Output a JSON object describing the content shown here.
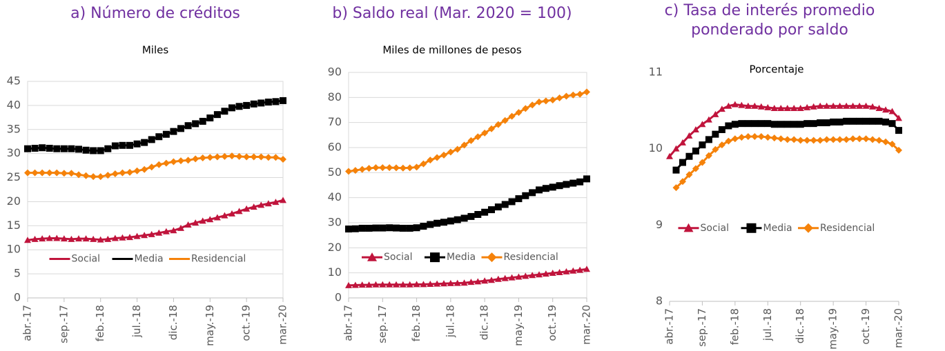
{
  "chart_data": [
    {
      "type": "line",
      "title": "a) Número de créditos",
      "subtitle": "Miles",
      "categories": [
        "abr.-17",
        null,
        null,
        null,
        null,
        "sep.-17",
        null,
        null,
        null,
        null,
        "feb.-18",
        null,
        null,
        null,
        null,
        "jul.-18",
        null,
        null,
        null,
        null,
        "dic.-18",
        null,
        null,
        null,
        null,
        "may.-19",
        null,
        null,
        null,
        null,
        "oct.-19",
        null,
        null,
        null,
        null,
        "mar.-20"
      ],
      "series": [
        {
          "name": "Social",
          "color": "#c0143c",
          "marker": "triangle",
          "values": [
            12.0,
            12.2,
            12.3,
            12.4,
            12.4,
            12.3,
            12.2,
            12.3,
            12.3,
            12.2,
            12.1,
            12.2,
            12.4,
            12.5,
            12.6,
            12.8,
            13.0,
            13.2,
            13.5,
            13.8,
            14.0,
            14.5,
            15.2,
            15.6,
            16.0,
            16.3,
            16.7,
            17.1,
            17.5,
            18.0,
            18.5,
            18.9,
            19.3,
            19.6,
            19.9,
            20.3
          ]
        },
        {
          "name": "Media",
          "color": "#000000",
          "marker": "square",
          "values": [
            31.0,
            31.1,
            31.2,
            31.1,
            31.0,
            31.0,
            31.0,
            30.9,
            30.7,
            30.6,
            30.6,
            31.0,
            31.6,
            31.7,
            31.7,
            32.0,
            32.3,
            32.9,
            33.5,
            34.0,
            34.6,
            35.2,
            35.8,
            36.2,
            36.7,
            37.4,
            38.1,
            38.8,
            39.5,
            39.8,
            40.0,
            40.3,
            40.5,
            40.7,
            40.8,
            41.0
          ]
        },
        {
          "name": "Residencial",
          "color": "#f5820a",
          "marker": "diamond",
          "values": [
            26.0,
            26.0,
            26.0,
            26.0,
            26.0,
            25.9,
            25.9,
            25.6,
            25.4,
            25.2,
            25.2,
            25.5,
            25.8,
            26.0,
            26.1,
            26.4,
            26.7,
            27.2,
            27.7,
            28.0,
            28.3,
            28.5,
            28.6,
            28.9,
            29.1,
            29.2,
            29.3,
            29.4,
            29.5,
            29.4,
            29.3,
            29.3,
            29.3,
            29.2,
            29.2,
            28.8
          ]
        }
      ],
      "ylim": [
        0,
        45
      ],
      "yticks": [
        0,
        5,
        10,
        15,
        20,
        25,
        30,
        35,
        40,
        45
      ],
      "grid": true,
      "legend": "lower center",
      "legend_markers": false
    },
    {
      "type": "line",
      "title": "b) Saldo real (Mar. 2020 = 100)",
      "subtitle": "Miles de millones de pesos",
      "categories": [
        "abr.-17",
        null,
        null,
        null,
        null,
        "sep.-17",
        null,
        null,
        null,
        null,
        "feb.-18",
        null,
        null,
        null,
        null,
        "jul.-18",
        null,
        null,
        null,
        null,
        "dic.-18",
        null,
        null,
        null,
        null,
        "may.-19",
        null,
        null,
        null,
        null,
        "oct.-19",
        null,
        null,
        null,
        null,
        "mar.-20"
      ],
      "series": [
        {
          "name": "Social",
          "color": "#c0143c",
          "marker": "triangle",
          "values": [
            5.0,
            5.1,
            5.2,
            5.2,
            5.3,
            5.3,
            5.3,
            5.3,
            5.3,
            5.3,
            5.4,
            5.4,
            5.5,
            5.6,
            5.7,
            5.8,
            5.9,
            6.0,
            6.3,
            6.5,
            6.8,
            7.1,
            7.5,
            7.8,
            8.1,
            8.4,
            8.7,
            9.0,
            9.3,
            9.6,
            9.9,
            10.2,
            10.5,
            10.8,
            11.1,
            11.5
          ]
        },
        {
          "name": "Media",
          "color": "#000000",
          "marker": "square",
          "values": [
            27.5,
            27.6,
            27.8,
            27.8,
            27.9,
            27.9,
            28.0,
            27.9,
            27.8,
            27.8,
            28.0,
            28.6,
            29.3,
            29.8,
            30.2,
            30.7,
            31.2,
            31.8,
            32.5,
            33.3,
            34.2,
            35.2,
            36.3,
            37.3,
            38.4,
            39.6,
            40.8,
            42.0,
            43.1,
            43.7,
            44.2,
            44.8,
            45.3,
            45.8,
            46.3,
            47.5
          ]
        },
        {
          "name": "Residencial",
          "color": "#f5820a",
          "marker": "diamond",
          "values": [
            50.5,
            50.9,
            51.3,
            51.7,
            52.0,
            52.0,
            52.0,
            51.9,
            51.8,
            51.9,
            52.2,
            53.5,
            55.0,
            56.0,
            57.0,
            58.2,
            59.3,
            61.0,
            62.8,
            64.3,
            65.8,
            67.5,
            69.2,
            70.8,
            72.5,
            74.0,
            75.6,
            77.0,
            78.2,
            78.6,
            79.0,
            79.8,
            80.5,
            81.0,
            81.3,
            82.2
          ]
        }
      ],
      "ylim": [
        0,
        90
      ],
      "yticks": [
        0,
        10,
        20,
        30,
        40,
        50,
        60,
        70,
        80,
        90
      ],
      "grid": true,
      "legend": "lower center",
      "legend_markers": true
    },
    {
      "type": "line",
      "title": "c) Tasa de interés promedio ponderado por saldo",
      "subtitle": "Porcentaje",
      "categories": [
        "abr.-17",
        null,
        null,
        null,
        null,
        "sep.-17",
        null,
        null,
        null,
        null,
        "feb.-18",
        null,
        null,
        null,
        null,
        "jul.-18",
        null,
        null,
        null,
        null,
        "dic.-18",
        null,
        null,
        null,
        null,
        "may.-19",
        null,
        null,
        null,
        null,
        "oct.-19",
        null,
        null,
        null,
        null,
        "mar.-20"
      ],
      "series": [
        {
          "name": "Social",
          "color": "#c0143c",
          "marker": "triangle",
          "values": [
            9.9,
            10.0,
            10.08,
            10.17,
            10.25,
            10.32,
            10.38,
            10.45,
            10.52,
            10.56,
            10.58,
            10.57,
            10.56,
            10.56,
            10.55,
            10.54,
            10.53,
            10.53,
            10.53,
            10.53,
            10.53,
            10.54,
            10.55,
            10.56,
            10.56,
            10.56,
            10.56,
            10.56,
            10.56,
            10.56,
            10.56,
            10.55,
            10.53,
            10.51,
            10.49,
            10.4
          ]
        },
        {
          "name": "Media",
          "color": "#000000",
          "marker": "square",
          "values": [
            null,
            9.72,
            9.82,
            9.9,
            9.97,
            10.05,
            10.12,
            10.19,
            10.25,
            10.3,
            10.32,
            10.33,
            10.33,
            10.33,
            10.33,
            10.33,
            10.32,
            10.32,
            10.32,
            10.32,
            10.32,
            10.33,
            10.33,
            10.34,
            10.34,
            10.35,
            10.35,
            10.36,
            10.36,
            10.36,
            10.36,
            10.36,
            10.36,
            10.35,
            10.33,
            10.24
          ]
        },
        {
          "name": "Residencial",
          "color": "#f5820a",
          "marker": "diamond",
          "values": [
            null,
            9.49,
            9.57,
            9.66,
            9.74,
            9.82,
            9.91,
            9.99,
            10.05,
            10.1,
            10.13,
            10.15,
            10.16,
            10.16,
            10.16,
            10.15,
            10.14,
            10.13,
            10.12,
            10.12,
            10.11,
            10.11,
            10.11,
            10.11,
            10.12,
            10.12,
            10.12,
            10.12,
            10.13,
            10.13,
            10.13,
            10.12,
            10.11,
            10.09,
            10.06,
            9.98
          ]
        }
      ],
      "ylim": [
        8,
        11
      ],
      "yticks": [
        8,
        9,
        10,
        11
      ],
      "grid": false,
      "legend": "center",
      "legend_markers": true
    }
  ]
}
